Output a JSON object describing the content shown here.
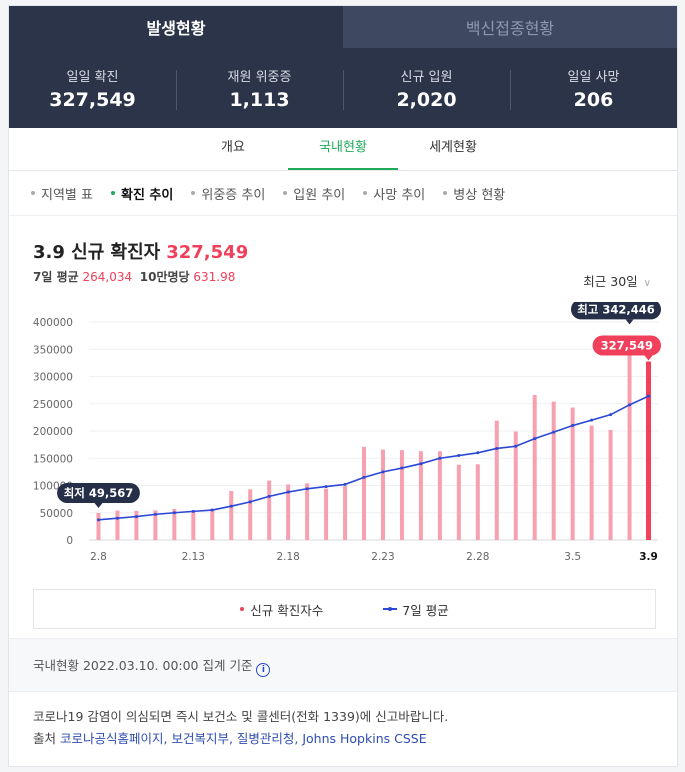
{
  "tabs": [
    {
      "label": "발생현황"
    },
    {
      "label": "백신접종현황"
    }
  ],
  "stats": [
    {
      "label": "일일 확진",
      "value": "327,549"
    },
    {
      "label": "재원 위중증",
      "value": "1,113"
    },
    {
      "label": "신규 입원",
      "value": "2,020"
    },
    {
      "label": "일일 사망",
      "value": "206"
    }
  ],
  "subtabs": [
    {
      "label": "개요"
    },
    {
      "label": "국내현황"
    },
    {
      "label": "세계현황"
    }
  ],
  "filters": [
    {
      "label": "지역별 표"
    },
    {
      "label": "확진 추이"
    },
    {
      "label": "위중증 추이"
    },
    {
      "label": "입원 추이"
    },
    {
      "label": "사망 추이"
    },
    {
      "label": "병상 현황"
    }
  ],
  "headline": {
    "title": "3.9 신규 확진자",
    "value": "327,549"
  },
  "sub": {
    "avg_label": "7일 평균",
    "avg_value": "264,034",
    "per_label": "10만명당",
    "per_value": "631.98"
  },
  "period": "최근 30일",
  "colors": {
    "bar": "#f7a1b0",
    "bar_last": "#f0405b",
    "avg_line": "#2b48d6",
    "callout_dark": "#253048",
    "callout_red": "#f0405b"
  },
  "chart_data": {
    "type": "bar",
    "ylim": [
      0,
      400000
    ],
    "yticks": [
      "400000",
      "350000",
      "300000",
      "250000",
      "200000",
      "150000",
      "100000",
      "50000",
      "0"
    ],
    "x_tick_labels": [
      {
        "index": 0,
        "label": "2.8"
      },
      {
        "index": 5,
        "label": "2.13"
      },
      {
        "index": 10,
        "label": "2.18"
      },
      {
        "index": 15,
        "label": "2.23"
      },
      {
        "index": 20,
        "label": "2.28"
      },
      {
        "index": 25,
        "label": "3.5"
      },
      {
        "index": 29,
        "label": "3.9"
      }
    ],
    "series": [
      {
        "name": "신규 확진자수",
        "type": "bar",
        "values": [
          49567,
          54000,
          53500,
          54500,
          57000,
          54000,
          57000,
          90000,
          93000,
          109000,
          102000,
          104000,
          94000,
          99000,
          171000,
          166000,
          165000,
          163000,
          163000,
          138000,
          139000,
          219000,
          199000,
          266000,
          254000,
          243000,
          210000,
          202000,
          342446,
          327549
        ]
      },
      {
        "name": "7일 평균",
        "type": "line",
        "values": [
          37000,
          40000,
          43000,
          47000,
          50000,
          52500,
          55000,
          62000,
          70000,
          80000,
          88000,
          94000,
          98000,
          102000,
          115000,
          125000,
          132000,
          140000,
          150000,
          155000,
          160000,
          168000,
          172000,
          186000,
          198000,
          210000,
          220000,
          230000,
          248000,
          264034
        ]
      }
    ],
    "annotations": [
      {
        "label": "최저",
        "value": "49,567",
        "index": 0
      },
      {
        "label": "최고",
        "value": "342,446",
        "index": 28
      },
      {
        "label": "",
        "value": "327,549",
        "index": 29
      }
    ]
  },
  "legend": [
    {
      "label": "신규 확진자수"
    },
    {
      "label": "7일 평균"
    }
  ],
  "footer": {
    "basis": "국내현황 2022.03.10. 00:00 집계 기준",
    "notice": "코로나19 감염이 의심되면 즉시 보건소 및 콜센터(전화 1339)에 신고바랍니다.",
    "source_label": "출처",
    "sources": "코로나공식홈페이지, 보건복지부, 질병관리청, Johns Hopkins CSSE"
  }
}
